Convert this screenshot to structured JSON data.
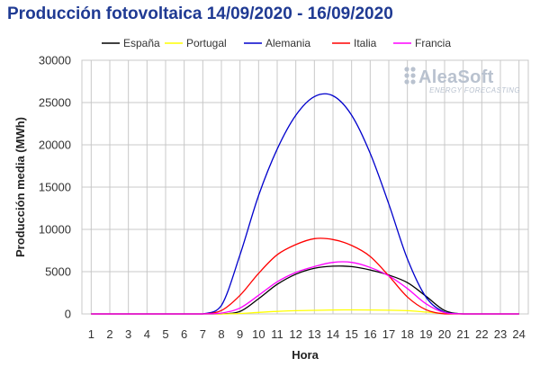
{
  "chart_data": {
    "type": "line",
    "title": "Producción fotovoltaica 14/09/2020 - 16/09/2020",
    "xlabel": "Hora",
    "ylabel": "Producción media (MWh)",
    "x": [
      1,
      2,
      3,
      4,
      5,
      6,
      7,
      8,
      9,
      10,
      11,
      12,
      13,
      14,
      15,
      16,
      17,
      18,
      19,
      20,
      21,
      22,
      23,
      24
    ],
    "xlim": [
      0.5,
      24.5
    ],
    "ylim": [
      0,
      30000
    ],
    "yticks": [
      0,
      5000,
      10000,
      15000,
      20000,
      25000,
      30000
    ],
    "grid": true,
    "legend": "top",
    "series": [
      {
        "name": "España",
        "color": "#000000",
        "values": [
          0,
          0,
          0,
          0,
          0,
          0,
          0,
          0,
          300,
          1800,
          3500,
          4700,
          5400,
          5650,
          5600,
          5200,
          4600,
          3700,
          2100,
          400,
          0,
          0,
          0,
          0
        ]
      },
      {
        "name": "Portugal",
        "color": "#ffff00",
        "values": [
          0,
          0,
          0,
          0,
          0,
          0,
          0,
          0,
          50,
          180,
          300,
          380,
          430,
          470,
          480,
          470,
          440,
          380,
          220,
          50,
          0,
          0,
          0,
          0
        ]
      },
      {
        "name": "Alemania",
        "color": "#0000cc",
        "values": [
          0,
          0,
          0,
          0,
          0,
          0,
          0,
          1000,
          7000,
          14000,
          19500,
          23500,
          25700,
          25800,
          23500,
          19000,
          13000,
          6500,
          2000,
          200,
          0,
          0,
          0,
          0
        ]
      },
      {
        "name": "Italia",
        "color": "#ff0000",
        "values": [
          0,
          0,
          0,
          0,
          0,
          0,
          0,
          400,
          2200,
          4800,
          7000,
          8200,
          8900,
          8800,
          8100,
          6800,
          4500,
          2000,
          500,
          0,
          0,
          0,
          0,
          0
        ]
      },
      {
        "name": "Francia",
        "color": "#ff00ff",
        "values": [
          0,
          0,
          0,
          0,
          0,
          0,
          0,
          100,
          700,
          2200,
          3800,
          4900,
          5600,
          6100,
          6100,
          5500,
          4500,
          3000,
          1200,
          150,
          0,
          0,
          0,
          0
        ]
      }
    ]
  },
  "logo": {
    "main": "AleaSoft",
    "sub": "ENERGY FORECASTING"
  }
}
